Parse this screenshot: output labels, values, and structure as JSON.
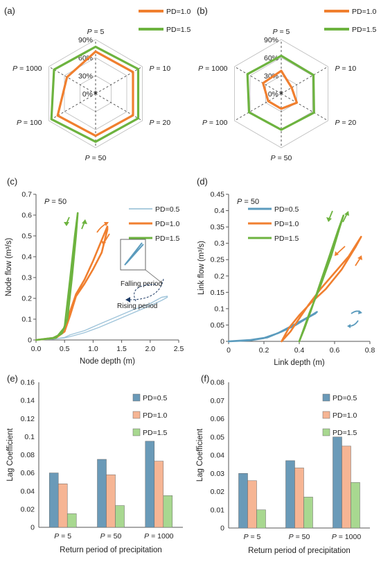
{
  "colors": {
    "pd05": "#5b9bbd",
    "pd05_thin": "#9fc4da",
    "pd10": "#f07f2f",
    "pd15": "#6db33f",
    "bar05": "#6a9ab8",
    "bar10": "#f6b594",
    "bar15": "#a8d890",
    "axis": "#555555",
    "grid": "#cccccc"
  },
  "chart_data": [
    {
      "panel": "(a)",
      "type": "radar",
      "categories": [
        "P = 5",
        "P = 10",
        "P = 20",
        "P = 50",
        "P = 100",
        "P = 1000"
      ],
      "ring_labels": [
        "0%",
        "30%",
        "60%",
        "90%"
      ],
      "rmax": 90,
      "series": [
        {
          "name": "PD=1.0",
          "values": [
            70,
            72,
            72,
            70,
            73,
            55
          ]
        },
        {
          "name": "PD=1.5",
          "values": [
            78,
            82,
            82,
            80,
            85,
            80
          ]
        }
      ]
    },
    {
      "panel": "(b)",
      "type": "radar",
      "categories": [
        "P = 5",
        "P = 10",
        "P = 20",
        "P = 50",
        "P = 100",
        "P = 1000"
      ],
      "ring_labels": [
        "0%",
        "30%",
        "60%",
        "90%"
      ],
      "rmax": 90,
      "series": [
        {
          "name": "PD=1.0",
          "values": [
            38,
            20,
            30,
            25,
            25,
            35
          ]
        },
        {
          "name": "PD=1.5",
          "values": [
            63,
            62,
            63,
            60,
            62,
            65
          ]
        }
      ]
    },
    {
      "panel": "(c)",
      "type": "line",
      "annotation": "P = 50",
      "xlabel": "Node depth (m)",
      "ylabel": "Node flow (m³/s)",
      "xlim": [
        0,
        2.5
      ],
      "ylim": [
        0,
        0.7
      ],
      "xticks": [
        "0.0",
        "0.5",
        "1.0",
        "1.5",
        "2.0",
        "2.5"
      ],
      "yticks": [
        "0",
        "0.1",
        "0.2",
        "0.3",
        "0.4",
        "0.5",
        "0.6",
        "0.7"
      ],
      "notes": [
        "Falling period",
        "Rising period"
      ],
      "series": [
        {
          "name": "PD=0.5",
          "x": [
            0.0,
            0.3,
            0.5,
            0.65,
            0.85,
            1.1,
            1.4,
            1.7,
            2.0,
            2.2,
            2.3,
            2.3,
            2.2,
            2.0,
            1.7,
            1.4,
            1.1,
            0.85,
            0.6,
            0.5,
            0.3,
            0.0
          ],
          "y": [
            0.0,
            0.005,
            0.01,
            0.02,
            0.035,
            0.06,
            0.095,
            0.13,
            0.165,
            0.19,
            0.205,
            0.21,
            0.205,
            0.175,
            0.145,
            0.11,
            0.075,
            0.045,
            0.025,
            0.012,
            0.004,
            0.0
          ]
        },
        {
          "name": "PD=1.0",
          "x": [
            0.0,
            0.3,
            0.45,
            0.55,
            0.7,
            0.85,
            1.0,
            1.15,
            1.25,
            1.25,
            1.15,
            1.0,
            0.85,
            0.7,
            0.6,
            0.5,
            0.35,
            0.0
          ],
          "y": [
            0.0,
            0.01,
            0.03,
            0.1,
            0.22,
            0.29,
            0.38,
            0.48,
            0.545,
            0.53,
            0.42,
            0.34,
            0.27,
            0.21,
            0.12,
            0.04,
            0.01,
            0.0
          ]
        },
        {
          "name": "PD=1.5",
          "x": [
            0.0,
            0.3,
            0.45,
            0.55,
            0.63,
            0.7,
            0.73,
            0.68,
            0.6,
            0.5,
            0.35,
            0.0
          ],
          "y": [
            0.0,
            0.01,
            0.03,
            0.1,
            0.3,
            0.5,
            0.61,
            0.5,
            0.3,
            0.06,
            0.01,
            0.0
          ]
        }
      ]
    },
    {
      "panel": "(d)",
      "type": "line",
      "annotation": "P = 50",
      "xlabel": "Link depth (m)",
      "ylabel": "Link flow (m³/s)",
      "xlim": [
        0,
        0.8
      ],
      "ylim": [
        0,
        0.45
      ],
      "xticks": [
        "0",
        "0.2",
        "0.4",
        "0.6",
        "0.8"
      ],
      "yticks": [
        "0",
        "0.05",
        "0.1",
        "0.15",
        "0.2",
        "0.25",
        "0.3",
        "0.35",
        "0.4",
        "0.45"
      ],
      "series": [
        {
          "name": "PD=0.5",
          "x": [
            0.0,
            0.12,
            0.2,
            0.28,
            0.35,
            0.42,
            0.47,
            0.5,
            0.49,
            0.44,
            0.38,
            0.3,
            0.22,
            0.12,
            0.0
          ],
          "y": [
            0.0,
            0.003,
            0.01,
            0.025,
            0.045,
            0.065,
            0.08,
            0.09,
            0.085,
            0.07,
            0.05,
            0.03,
            0.012,
            0.004,
            0.0
          ]
        },
        {
          "name": "PD=1.0",
          "x": [
            0.3,
            0.35,
            0.4,
            0.45,
            0.52,
            0.6,
            0.68,
            0.75,
            0.72,
            0.64,
            0.55,
            0.47,
            0.4,
            0.34,
            0.3
          ],
          "y": [
            0.0,
            0.03,
            0.07,
            0.11,
            0.16,
            0.21,
            0.26,
            0.32,
            0.29,
            0.22,
            0.16,
            0.12,
            0.08,
            0.04,
            0.0
          ]
        },
        {
          "name": "PD=1.5",
          "x": [
            0.4,
            0.43,
            0.47,
            0.52,
            0.57,
            0.62,
            0.65,
            0.63,
            0.58,
            0.52,
            0.46,
            0.42,
            0.4
          ],
          "y": [
            0.0,
            0.04,
            0.1,
            0.18,
            0.26,
            0.34,
            0.385,
            0.35,
            0.26,
            0.17,
            0.09,
            0.03,
            0.0
          ]
        }
      ]
    },
    {
      "panel": "(e)",
      "type": "bar",
      "xlabel": "Return period of precipitation",
      "ylabel": "Lag Coefficient",
      "categories": [
        "P = 5",
        "P = 50",
        "P = 1000"
      ],
      "ylim": [
        0,
        0.16
      ],
      "yticks": [
        "0",
        "0.02",
        "0.04",
        "0.06",
        "0.08",
        "0.1",
        "0.12",
        "0.14",
        "0.16"
      ],
      "series": [
        {
          "name": "PD=0.5",
          "values": [
            0.06,
            0.075,
            0.095
          ]
        },
        {
          "name": "PD=1.0",
          "values": [
            0.048,
            0.058,
            0.073
          ]
        },
        {
          "name": "PD=1.5",
          "values": [
            0.015,
            0.024,
            0.035
          ]
        }
      ]
    },
    {
      "panel": "(f)",
      "type": "bar",
      "xlabel": "Return period of precipitation",
      "ylabel": "Lag Coefficient",
      "categories": [
        "P = 5",
        "P = 50",
        "P = 1000"
      ],
      "ylim": [
        0,
        0.08
      ],
      "yticks": [
        "0",
        "0.01",
        "0.02",
        "0.03",
        "0.04",
        "0.05",
        "0.06",
        "0.07",
        "0.08"
      ],
      "series": [
        {
          "name": "PD=0.5",
          "values": [
            0.03,
            0.037,
            0.05
          ]
        },
        {
          "name": "PD=1.0",
          "values": [
            0.026,
            0.033,
            0.045
          ]
        },
        {
          "name": "PD=1.5",
          "values": [
            0.01,
            0.017,
            0.025
          ]
        }
      ]
    }
  ]
}
